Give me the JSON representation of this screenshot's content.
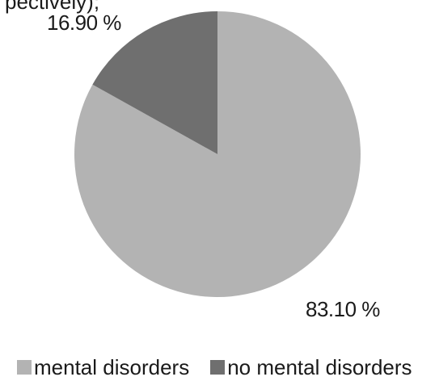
{
  "fragment_text": "pectively);",
  "chart_data": {
    "type": "pie",
    "labels": [
      "mental disorders",
      "no mental disorders"
    ],
    "values": [
      83.1,
      16.9
    ],
    "data_labels": [
      "83.10 %",
      "16.90 %"
    ],
    "colors": [
      "#b3b3b3",
      "#6f6f6f"
    ],
    "title": "",
    "legend_position": "bottom",
    "start_angle": "12 o'clock, clockwise"
  }
}
